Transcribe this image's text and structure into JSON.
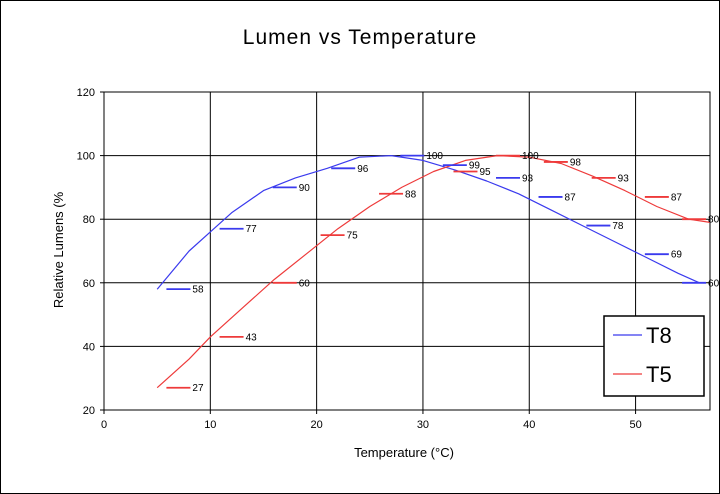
{
  "chart_data": {
    "type": "line",
    "title": "Lumen vs Temperature",
    "xlabel": "Temperature (°C)",
    "ylabel": "Relative Lumens (%",
    "xlim": [
      0,
      57
    ],
    "ylim": [
      20,
      120
    ],
    "xticks": [
      0,
      10,
      20,
      30,
      40,
      50
    ],
    "yticks": [
      20,
      40,
      60,
      80,
      100,
      120
    ],
    "grid": true,
    "legend_position": "bottom-right",
    "colors": {
      "T8": "#3a3aee",
      "T5": "#ee3a3a"
    },
    "series": [
      {
        "name": "T8",
        "curve": [
          [
            5,
            58
          ],
          [
            8,
            70
          ],
          [
            10,
            76
          ],
          [
            12,
            82
          ],
          [
            15,
            89
          ],
          [
            18,
            93
          ],
          [
            21,
            96
          ],
          [
            24,
            99.5
          ],
          [
            27,
            100
          ],
          [
            30,
            98.5
          ],
          [
            33,
            95.5
          ],
          [
            36,
            92
          ],
          [
            39,
            88
          ],
          [
            42,
            83
          ],
          [
            45,
            78
          ],
          [
            48,
            73
          ],
          [
            51,
            68
          ],
          [
            54,
            63
          ],
          [
            56,
            60
          ]
        ],
        "labels": [
          {
            "x": 7,
            "y": 58,
            "text": "58"
          },
          {
            "x": 12,
            "y": 77,
            "text": "77"
          },
          {
            "x": 17,
            "y": 90,
            "text": "90"
          },
          {
            "x": 22.5,
            "y": 96,
            "text": "96"
          },
          {
            "x": 29,
            "y": 100,
            "text": "100"
          },
          {
            "x": 33,
            "y": 97,
            "text": "99"
          },
          {
            "x": 38,
            "y": 93,
            "text": "93"
          },
          {
            "x": 42,
            "y": 87,
            "text": "87"
          },
          {
            "x": 46.5,
            "y": 78,
            "text": "78"
          },
          {
            "x": 52,
            "y": 69,
            "text": "69"
          },
          {
            "x": 55.5,
            "y": 60,
            "text": "60"
          }
        ]
      },
      {
        "name": "T5",
        "curve": [
          [
            5,
            27
          ],
          [
            8,
            36
          ],
          [
            10,
            43
          ],
          [
            13,
            52
          ],
          [
            16,
            61
          ],
          [
            19,
            69
          ],
          [
            22,
            77
          ],
          [
            25,
            84
          ],
          [
            28,
            90
          ],
          [
            31,
            95
          ],
          [
            34,
            98.5
          ],
          [
            37,
            100
          ],
          [
            40,
            99.5
          ],
          [
            43,
            97.5
          ],
          [
            46,
            93.5
          ],
          [
            49,
            89
          ],
          [
            52,
            84
          ],
          [
            55,
            80
          ],
          [
            57,
            79
          ]
        ],
        "labels": [
          {
            "x": 7,
            "y": 27,
            "text": "27"
          },
          {
            "x": 12,
            "y": 43,
            "text": "43"
          },
          {
            "x": 17,
            "y": 60,
            "text": "60"
          },
          {
            "x": 21.5,
            "y": 75,
            "text": "75"
          },
          {
            "x": 27,
            "y": 88,
            "text": "88"
          },
          {
            "x": 34,
            "y": 95,
            "text": "95"
          },
          {
            "x": 38,
            "y": 100,
            "text": "100"
          },
          {
            "x": 42.5,
            "y": 98,
            "text": "98"
          },
          {
            "x": 47,
            "y": 93,
            "text": "93"
          },
          {
            "x": 52,
            "y": 87,
            "text": "87"
          },
          {
            "x": 55.5,
            "y": 80,
            "text": "80"
          }
        ]
      }
    ]
  }
}
